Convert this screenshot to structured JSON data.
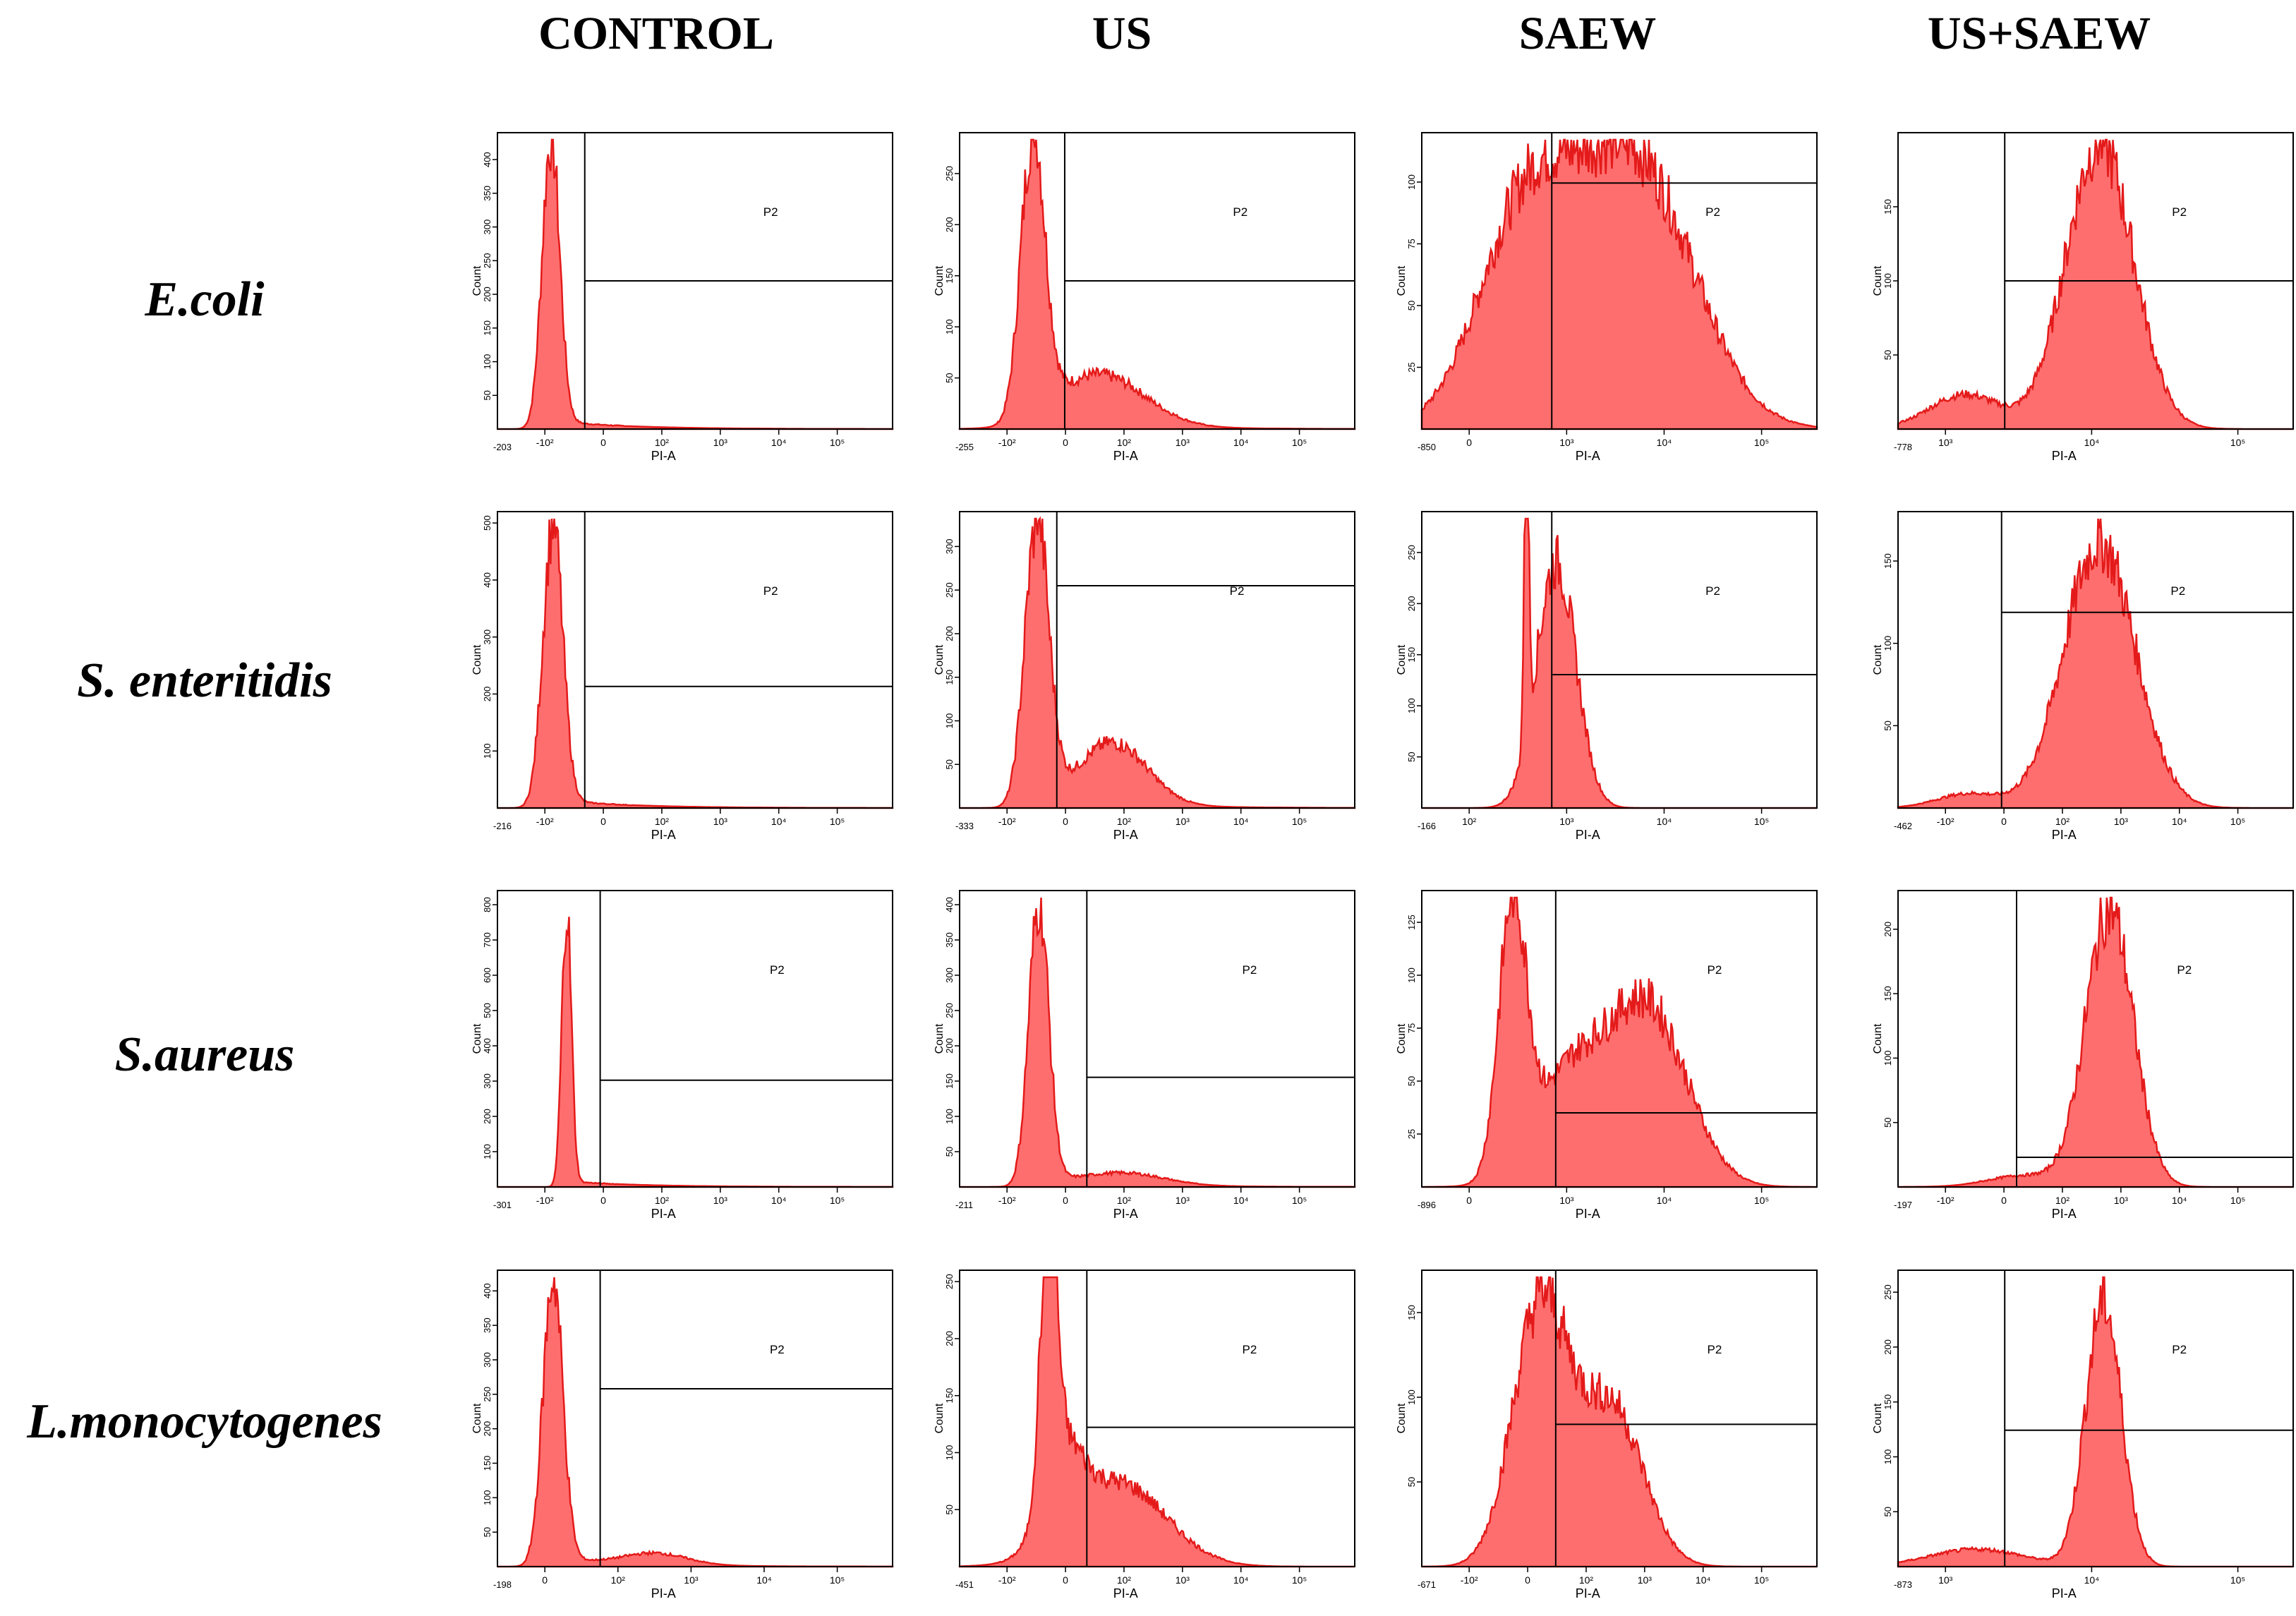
{
  "colors": {
    "fill": "#ff6e6e",
    "stroke": "#e41a1a",
    "frame": "#000000"
  },
  "columns": [
    "CONTROL",
    "US",
    "SAEW",
    "US+SAEW"
  ],
  "rows": [
    "E.coli",
    "S. enteritidis",
    "S.aureus",
    "L.monocytogenes"
  ],
  "chart_data": [
    {
      "type": "area",
      "row": "E.coli",
      "treatment": "CONTROL",
      "ylabel": "Count",
      "xlabel": "PI-A",
      "gate": "P2",
      "xmin_label": "-203",
      "yticks": [
        "50",
        "100",
        "150",
        "200",
        "250",
        "300",
        "350",
        "400"
      ],
      "ymax": 440,
      "xticks": [
        "-10²",
        "0",
        "10²",
        "10³",
        "10⁴",
        "10⁵"
      ],
      "gate_x": 0.221,
      "gate_level": 0.5,
      "peaks": [
        {
          "x": 0.135,
          "w": 0.022,
          "h": 1.0
        }
      ],
      "tail": 0.03
    },
    {
      "type": "area",
      "row": "E.coli",
      "treatment": "US",
      "ylabel": "Count",
      "xlabel": "PI-A",
      "gate": "P2",
      "xmin_label": "-255",
      "yticks": [
        "50",
        "100",
        "150",
        "200",
        "250"
      ],
      "ymax": 290,
      "xticks": [
        "-10²",
        "0",
        "10²",
        "10³",
        "10⁴",
        "10⁵"
      ],
      "gate_x": 0.266,
      "gate_level": 0.5,
      "peaks": [
        {
          "x": 0.185,
          "w": 0.03,
          "h": 0.98
        },
        {
          "x": 0.36,
          "w": 0.11,
          "h": 0.17
        }
      ],
      "tail": 0.05
    },
    {
      "type": "area",
      "row": "E.coli",
      "treatment": "SAEW",
      "ylabel": "Count",
      "xlabel": "PI-A",
      "gate": "P2",
      "xmin_label": "-850",
      "yticks": [
        "25",
        "50",
        "75",
        "100"
      ],
      "ymax": 120,
      "xticks": [
        "0",
        "10³",
        "10⁴",
        "10⁵"
      ],
      "gate_x": 0.329,
      "gate_level": 0.83,
      "peaks": [
        {
          "x": 0.26,
          "w": 0.12,
          "h": 0.7
        },
        {
          "x": 0.535,
          "w": 0.15,
          "h": 0.93
        }
      ],
      "tail": 0.0
    },
    {
      "type": "area",
      "row": "E.coli",
      "treatment": "US+SAEW",
      "ylabel": "Count",
      "xlabel": "PI-A",
      "gate": "P2",
      "xmin_label": "-778",
      "yticks": [
        "50",
        "100",
        "150"
      ],
      "ymax": 200,
      "xticks": [
        "10³",
        "10⁴",
        "10⁵"
      ],
      "gate_x": 0.27,
      "gate_level": 0.5,
      "peaks": [
        {
          "x": 0.51,
          "w": 0.085,
          "h": 0.99
        },
        {
          "x": 0.17,
          "w": 0.09,
          "h": 0.12
        }
      ],
      "tail": 0.0
    },
    {
      "type": "area",
      "row": "S. enteritidis",
      "treatment": "CONTROL",
      "ylabel": "Count",
      "xlabel": "PI-A",
      "gate": "P2",
      "xmin_label": "-216",
      "yticks": [
        "100",
        "200",
        "300",
        "400",
        "500"
      ],
      "ymax": 520,
      "xticks": [
        "-10²",
        "0",
        "10²",
        "10³",
        "10⁴",
        "10⁵"
      ],
      "gate_x": 0.221,
      "gate_level": 0.41,
      "peaks": [
        {
          "x": 0.14,
          "w": 0.025,
          "h": 0.97
        }
      ],
      "tail": 0.03
    },
    {
      "type": "area",
      "row": "S. enteritidis",
      "treatment": "US",
      "ylabel": "Count",
      "xlabel": "PI-A",
      "gate": "P2",
      "xmin_label": "-333",
      "yticks": [
        "50",
        "100",
        "150",
        "200",
        "250",
        "300"
      ],
      "ymax": 340,
      "xticks": [
        "-10²",
        "0",
        "10²",
        "10³",
        "10⁴",
        "10⁵"
      ],
      "gate_x": 0.246,
      "gate_level": 0.75,
      "peaks": [
        {
          "x": 0.195,
          "w": 0.03,
          "h": 0.97
        },
        {
          "x": 0.39,
          "w": 0.085,
          "h": 0.21
        }
      ],
      "tail": 0.05
    },
    {
      "type": "area",
      "row": "S. enteritidis",
      "treatment": "SAEW",
      "ylabel": "Count",
      "xlabel": "PI-A",
      "gate": "P2",
      "xmin_label": "-166",
      "yticks": [
        "50",
        "100",
        "150",
        "200",
        "250"
      ],
      "ymax": 290,
      "xticks": [
        "10²",
        "10³",
        "10⁴",
        "10⁵"
      ],
      "gate_x": 0.329,
      "gate_level": 0.45,
      "peaks": [
        {
          "x": 0.34,
          "w": 0.05,
          "h": 0.85
        },
        {
          "x": 0.265,
          "w": 0.006,
          "h": 0.97
        }
      ],
      "tail": 0.0
    },
    {
      "type": "area",
      "row": "S. enteritidis",
      "treatment": "US+SAEW",
      "ylabel": "Count",
      "xlabel": "PI-A",
      "gate": "P2",
      "xmin_label": "-462",
      "yticks": [
        "50",
        "100",
        "150"
      ],
      "ymax": 180,
      "xticks": [
        "-10²",
        "0",
        "10²",
        "10³",
        "10⁴",
        "10⁵"
      ],
      "gate_x": 0.262,
      "gate_level": 0.66,
      "peaks": [
        {
          "x": 0.51,
          "w": 0.09,
          "h": 0.92
        },
        {
          "x": 0.18,
          "w": 0.08,
          "h": 0.05
        }
      ],
      "tail": 0.0
    },
    {
      "type": "area",
      "row": "S.aureus",
      "treatment": "CONTROL",
      "ylabel": "Count",
      "xlabel": "PI-A",
      "gate": "P2",
      "xmin_label": "-301",
      "yticks": [
        "100",
        "200",
        "300",
        "400",
        "500",
        "600",
        "700",
        "800"
      ],
      "ymax": 840,
      "xticks": [
        "-10²",
        "0",
        "10²",
        "10³",
        "10⁴",
        "10⁵"
      ],
      "gate_x": 0.26,
      "gate_level": 0.36,
      "peaks": [
        {
          "x": 0.175,
          "w": 0.012,
          "h": 0.96
        }
      ],
      "tail": 0.02
    },
    {
      "type": "area",
      "row": "S.aureus",
      "treatment": "US",
      "ylabel": "Count",
      "xlabel": "PI-A",
      "gate": "P2",
      "xmin_label": "-211",
      "yticks": [
        "50",
        "100",
        "150",
        "200",
        "250",
        "300",
        "350",
        "400"
      ],
      "ymax": 420,
      "xticks": [
        "-10²",
        "0",
        "10²",
        "10³",
        "10⁴",
        "10⁵"
      ],
      "gate_x": 0.322,
      "gate_level": 0.37,
      "peaks": [
        {
          "x": 0.2,
          "w": 0.025,
          "h": 0.97
        },
        {
          "x": 0.42,
          "w": 0.1,
          "h": 0.04
        }
      ],
      "tail": 0.03
    },
    {
      "type": "area",
      "row": "S.aureus",
      "treatment": "SAEW",
      "ylabel": "Count",
      "xlabel": "PI-A",
      "gate": "P2",
      "xmin_label": "-896",
      "yticks": [
        "25",
        "50",
        "75",
        "100",
        "125"
      ],
      "ymax": 140,
      "xticks": [
        "0",
        "10³",
        "10⁴",
        "10⁵"
      ],
      "gate_x": 0.339,
      "gate_level": 0.25,
      "peaks": [
        {
          "x": 0.23,
          "w": 0.035,
          "h": 0.92
        },
        {
          "x": 0.57,
          "w": 0.1,
          "h": 0.62
        },
        {
          "x": 0.37,
          "w": 0.09,
          "h": 0.36
        }
      ],
      "tail": 0.0
    },
    {
      "type": "area",
      "row": "S.aureus",
      "treatment": "US+SAEW",
      "ylabel": "Count",
      "xlabel": "PI-A",
      "gate": "P2",
      "xmin_label": "-197",
      "yticks": [
        "50",
        "100",
        "150",
        "200"
      ],
      "ymax": 230,
      "xticks": [
        "-10²",
        "0",
        "10²",
        "10³",
        "10⁴",
        "10⁵"
      ],
      "gate_x": 0.3,
      "gate_level": 0.1,
      "peaks": [
        {
          "x": 0.535,
          "w": 0.06,
          "h": 0.96
        },
        {
          "x": 0.32,
          "w": 0.09,
          "h": 0.04
        }
      ],
      "tail": 0.0
    },
    {
      "type": "area",
      "row": "L.monocytogenes",
      "treatment": "CONTROL",
      "ylabel": "Count",
      "xlabel": "PI-A",
      "gate": "P2",
      "xmin_label": "-198",
      "yticks": [
        "50",
        "100",
        "150",
        "200",
        "250",
        "300",
        "350",
        "400"
      ],
      "ymax": 430,
      "xticks": [
        "0",
        "10²",
        "10³",
        "10⁴",
        "10⁵"
      ],
      "gate_x": 0.26,
      "gate_level": 0.6,
      "peaks": [
        {
          "x": 0.14,
          "w": 0.025,
          "h": 0.99
        },
        {
          "x": 0.4,
          "w": 0.08,
          "h": 0.04
        }
      ],
      "tail": 0.03
    },
    {
      "type": "area",
      "row": "L.monocytogenes",
      "treatment": "US",
      "ylabel": "Count",
      "xlabel": "PI-A",
      "gate": "P2",
      "xmin_label": "-451",
      "yticks": [
        "50",
        "100",
        "150",
        "200",
        "250"
      ],
      "ymax": 260,
      "xticks": [
        "-10²",
        "0",
        "10²",
        "10³",
        "10⁴",
        "10⁵"
      ],
      "gate_x": 0.322,
      "gate_level": 0.47,
      "peaks": [
        {
          "x": 0.225,
          "w": 0.02,
          "h": 0.99
        },
        {
          "x": 0.4,
          "w": 0.12,
          "h": 0.29
        },
        {
          "x": 0.26,
          "w": 0.05,
          "h": 0.28
        }
      ],
      "tail": 0.0
    },
    {
      "type": "area",
      "row": "L.monocytogenes",
      "treatment": "SAEW",
      "ylabel": "Count",
      "xlabel": "PI-A",
      "gate": "P2",
      "xmin_label": "-671",
      "yticks": [
        "50",
        "100",
        "150"
      ],
      "ymax": 175,
      "xticks": [
        "-10²",
        "0",
        "10²",
        "10³",
        "10⁴",
        "10⁵"
      ],
      "gate_x": 0.339,
      "gate_level": 0.48,
      "peaks": [
        {
          "x": 0.3,
          "w": 0.07,
          "h": 0.9
        },
        {
          "x": 0.48,
          "w": 0.08,
          "h": 0.55
        }
      ],
      "tail": 0.0
    },
    {
      "type": "area",
      "row": "L.monocytogenes",
      "treatment": "US+SAEW",
      "ylabel": "Count",
      "xlabel": "PI-A",
      "gate": "P2",
      "xmin_label": "-873",
      "yticks": [
        "50",
        "100",
        "150",
        "200",
        "250"
      ],
      "ymax": 270,
      "xticks": [
        "10³",
        "10⁴",
        "10⁵"
      ],
      "gate_x": 0.27,
      "gate_level": 0.46,
      "peaks": [
        {
          "x": 0.52,
          "w": 0.045,
          "h": 0.92
        },
        {
          "x": 0.2,
          "w": 0.12,
          "h": 0.06
        }
      ],
      "tail": 0.0
    }
  ]
}
